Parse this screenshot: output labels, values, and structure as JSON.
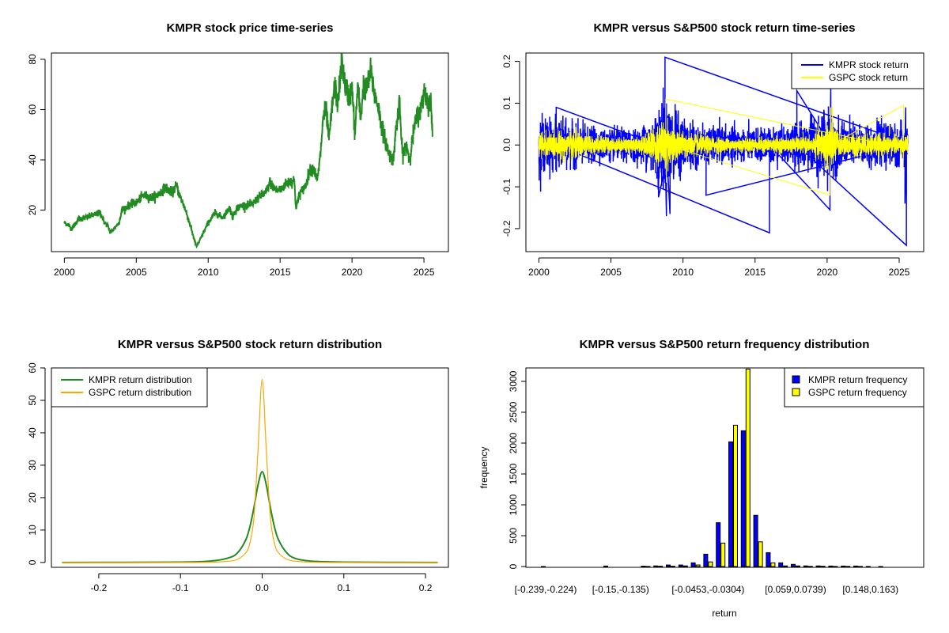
{
  "chart_data": [
    {
      "type": "line",
      "title": "KMPR stock price time-series",
      "xlabel": "",
      "ylabel": "",
      "xlim": [
        1999.1,
        2026.7
      ],
      "ylim": [
        3.5,
        82.5
      ],
      "xticks": [
        "2000",
        "2005",
        "2010",
        "2015",
        "2020",
        "2025"
      ],
      "yticks": [
        "20",
        "40",
        "60",
        "80"
      ],
      "color": "#228B22",
      "series": [
        {
          "name": "KMPR price",
          "points": [
            [
              2000,
              15
            ],
            [
              2000.3,
              14
            ],
            [
              2000.5,
              12.5
            ],
            [
              2001,
              16.5
            ],
            [
              2001.5,
              17
            ],
            [
              2002,
              18
            ],
            [
              2002.5,
              19
            ],
            [
              2002.8,
              15
            ],
            [
              2003,
              14
            ],
            [
              2003.2,
              11
            ],
            [
              2003.8,
              15
            ],
            [
              2004,
              20
            ],
            [
              2004.5,
              22
            ],
            [
              2005,
              23
            ],
            [
              2005.5,
              26
            ],
            [
              2006,
              25
            ],
            [
              2006.5,
              26
            ],
            [
              2007,
              29
            ],
            [
              2007.5,
              27
            ],
            [
              2007.8,
              30
            ],
            [
              2008,
              26
            ],
            [
              2008.3,
              22
            ],
            [
              2008.7,
              15
            ],
            [
              2009,
              9
            ],
            [
              2009.2,
              5.5
            ],
            [
              2009.5,
              9
            ],
            [
              2010,
              15
            ],
            [
              2010.5,
              19
            ],
            [
              2011,
              17
            ],
            [
              2011.5,
              21
            ],
            [
              2011.7,
              17
            ],
            [
              2012,
              21
            ],
            [
              2012.5,
              22
            ],
            [
              2013,
              22
            ],
            [
              2013.5,
              25
            ],
            [
              2014,
              27
            ],
            [
              2014.3,
              31
            ],
            [
              2014.7,
              28
            ],
            [
              2015,
              28
            ],
            [
              2015.5,
              31
            ],
            [
              2016,
              32
            ],
            [
              2016.1,
              20
            ],
            [
              2016.3,
              26
            ],
            [
              2016.8,
              30
            ],
            [
              2017,
              35
            ],
            [
              2017.3,
              37
            ],
            [
              2017.6,
              32
            ],
            [
              2017.8,
              42
            ],
            [
              2018,
              57
            ],
            [
              2018.2,
              60
            ],
            [
              2018.4,
              48
            ],
            [
              2018.6,
              60
            ],
            [
              2018.8,
              70
            ],
            [
              2019,
              62
            ],
            [
              2019.3,
              80
            ],
            [
              2019.5,
              70
            ],
            [
              2019.8,
              65
            ],
            [
              2020,
              69
            ],
            [
              2020.2,
              50
            ],
            [
              2020.4,
              70
            ],
            [
              2020.6,
              56
            ],
            [
              2020.8,
              70
            ],
            [
              2021,
              68
            ],
            [
              2021.3,
              75
            ],
            [
              2021.6,
              65
            ],
            [
              2021.8,
              62
            ],
            [
              2022,
              55
            ],
            [
              2022.3,
              48
            ],
            [
              2022.6,
              42
            ],
            [
              2022.9,
              40
            ],
            [
              2023,
              50
            ],
            [
              2023.3,
              62
            ],
            [
              2023.5,
              42
            ],
            [
              2023.8,
              46
            ],
            [
              2024,
              40
            ],
            [
              2024.3,
              52
            ],
            [
              2024.5,
              57
            ],
            [
              2024.8,
              60
            ],
            [
              2025,
              68
            ],
            [
              2025.2,
              64
            ],
            [
              2025.5,
              62
            ],
            [
              2025.6,
              48
            ]
          ]
        }
      ]
    },
    {
      "type": "line",
      "title": "KMPR versus S&P500 stock return time-series",
      "xlim": [
        1999.1,
        2026.7
      ],
      "ylim": [
        -0.255,
        0.22
      ],
      "xticks": [
        "2000",
        "2005",
        "2010",
        "2015",
        "2020",
        "2025"
      ],
      "yticks": [
        "-0.2",
        "-0.1",
        "0.0",
        "0.1",
        "0.2"
      ],
      "legend": {
        "position": "top-right",
        "entries": [
          {
            "label": "KMPR stock return",
            "color": "#0000FF"
          },
          {
            "label": "GSPC stock return",
            "color": "#FFFF00"
          }
        ]
      },
      "series": [
        {
          "name": "KMPR stock return",
          "color": "#0000FF",
          "volatility": [
            [
              2000,
              0.03
            ],
            [
              2002,
              0.025
            ],
            [
              2004,
              0.017
            ],
            [
              2007,
              0.017
            ],
            [
              2008.7,
              0.05
            ],
            [
              2009.5,
              0.035
            ],
            [
              2011,
              0.02
            ],
            [
              2015,
              0.017
            ],
            [
              2018,
              0.022
            ],
            [
              2020.2,
              0.04
            ],
            [
              2021,
              0.022
            ],
            [
              2025.6,
              0.022
            ]
          ],
          "spikes": [
            [
              2008.75,
              0.21
            ],
            [
              2008.85,
              -0.17
            ],
            [
              2009.1,
              -0.165
            ],
            [
              2008.3,
              -0.125
            ],
            [
              2001.2,
              0.09
            ],
            [
              2016.0,
              -0.21
            ],
            [
              2020.2,
              -0.155
            ],
            [
              2020.25,
              0.14
            ],
            [
              2017.9,
              0.13
            ],
            [
              2025.5,
              -0.24
            ],
            [
              2025.4,
              -0.14
            ],
            [
              2025.45,
              0.09
            ],
            [
              2011.6,
              -0.12
            ]
          ]
        },
        {
          "name": "GSPC stock return",
          "color": "#FFFF00",
          "volatility": [
            [
              2000,
              0.014
            ],
            [
              2002.5,
              0.016
            ],
            [
              2004,
              0.009
            ],
            [
              2007,
              0.008
            ],
            [
              2008.8,
              0.03
            ],
            [
              2009.5,
              0.017
            ],
            [
              2011,
              0.012
            ],
            [
              2013,
              0.008
            ],
            [
              2019,
              0.009
            ],
            [
              2020.2,
              0.03
            ],
            [
              2021,
              0.01
            ],
            [
              2022,
              0.014
            ],
            [
              2025.6,
              0.01
            ]
          ],
          "spikes": [
            [
              2008.8,
              0.11
            ],
            [
              2008.85,
              -0.09
            ],
            [
              2020.2,
              -0.12
            ],
            [
              2020.25,
              0.09
            ],
            [
              2025.3,
              0.095
            ],
            [
              2025.28,
              -0.06
            ]
          ]
        }
      ]
    },
    {
      "type": "line",
      "title": "KMPR versus S&P500 stock return distribution",
      "xlim": [
        -0.258,
        0.228
      ],
      "ylim": [
        -1.5,
        60
      ],
      "xticks": [
        "-0.2",
        "-0.1",
        "0.0",
        "0.1",
        "0.2"
      ],
      "yticks": [
        "0",
        "10",
        "20",
        "30",
        "40",
        "50",
        "60"
      ],
      "legend": {
        "position": "top-left",
        "entries": [
          {
            "label": "KMPR return distribution",
            "color": "#228B22"
          },
          {
            "label": "GSPC return distribution",
            "color": "#FFA500"
          }
        ]
      },
      "x": [
        -0.245,
        -0.1,
        -0.06,
        -0.04,
        -0.03,
        -0.02,
        -0.015,
        -0.01,
        -0.005,
        0,
        0.005,
        0.01,
        0.015,
        0.02,
        0.03,
        0.04,
        0.06,
        0.1,
        0.215
      ],
      "series": [
        {
          "name": "KMPR return distribution",
          "color": "#228B22",
          "values": [
            0,
            0.1,
            0.5,
            1.5,
            3,
            7,
            11,
            17,
            24,
            28,
            24,
            17,
            11,
            7,
            3,
            1.3,
            0.4,
            0.1,
            0
          ]
        },
        {
          "name": "GSPC return distribution",
          "color": "#FFA500",
          "values": [
            0,
            0,
            0.1,
            0.4,
            1,
            3,
            6,
            14,
            35,
            56.5,
            35,
            14,
            6,
            3,
            1,
            0.4,
            0.1,
            0,
            0
          ]
        }
      ]
    },
    {
      "type": "bar",
      "title": "KMPR versus S&P500 return frequency distribution",
      "xlabel": "return",
      "ylabel": "frequency",
      "ylim": [
        0,
        3200
      ],
      "yticks": [
        "0",
        "500",
        "1000",
        "1500",
        "2000",
        "2500",
        "3000"
      ],
      "xtick_labels": [
        {
          "bin": 0,
          "label": "[-0.239,-0.224)"
        },
        {
          "bin": 6,
          "label": "[-0.15,-0.135)"
        },
        {
          "bin": 13,
          "label": "[-0.0453,-0.0304)"
        },
        {
          "bin": 20,
          "label": "[0.059,0.0739)"
        },
        {
          "bin": 26,
          "label": "[0.148,0.163)"
        }
      ],
      "legend": {
        "position": "top-right",
        "entries": [
          {
            "label": "KMPR return frequency",
            "color": "#0000FF"
          },
          {
            "label": "GSPC return frequency",
            "color": "#FFFF00"
          }
        ]
      },
      "series": [
        {
          "name": "KMPR return frequency",
          "color": "#0000FF",
          "values": [
            1,
            0,
            0,
            0,
            0,
            8,
            0,
            0,
            6,
            10,
            25,
            25,
            60,
            200,
            710,
            2020,
            2200,
            830,
            225,
            60,
            35,
            10,
            10,
            8,
            8,
            8,
            2,
            1,
            0,
            0
          ]
        },
        {
          "name": "GSPC return frequency",
          "color": "#FFFF00",
          "values": [
            0,
            0,
            0,
            0,
            0,
            0,
            0,
            0,
            2,
            5,
            5,
            10,
            25,
            75,
            380,
            2290,
            3300,
            400,
            60,
            10,
            10,
            3,
            5,
            2,
            3,
            2,
            0,
            0,
            0,
            0
          ]
        }
      ]
    }
  ]
}
